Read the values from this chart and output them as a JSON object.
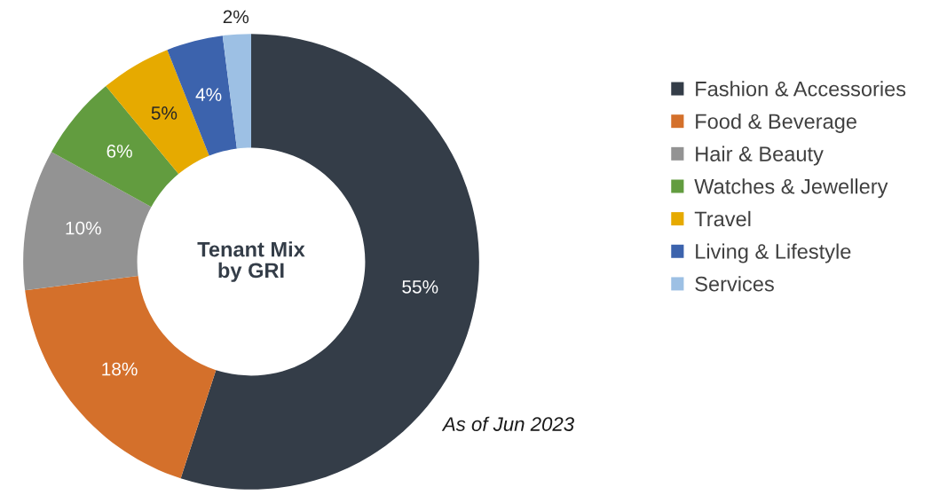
{
  "chart_data": {
    "type": "donut",
    "title": "Tenant Mix\nby GRI",
    "categories": [
      "Fashion & Accessories",
      "Food & Beverage",
      "Hair & Beauty",
      "Watches & Jewellery",
      "Travel",
      "Living & Lifestyle",
      "Services"
    ],
    "values": [
      55,
      18,
      10,
      6,
      5,
      4,
      2
    ],
    "colors": [
      "#343d48",
      "#d4702b",
      "#939393",
      "#629c3f",
      "#e6aa00",
      "#3c63ad",
      "#9dc0e4"
    ],
    "value_labels": [
      "55%",
      "18%",
      "10%",
      "6%",
      "5%",
      "4%",
      "2%"
    ],
    "legend": "right",
    "annotations": [
      {
        "text": "As of Jun 2023"
      }
    ]
  }
}
